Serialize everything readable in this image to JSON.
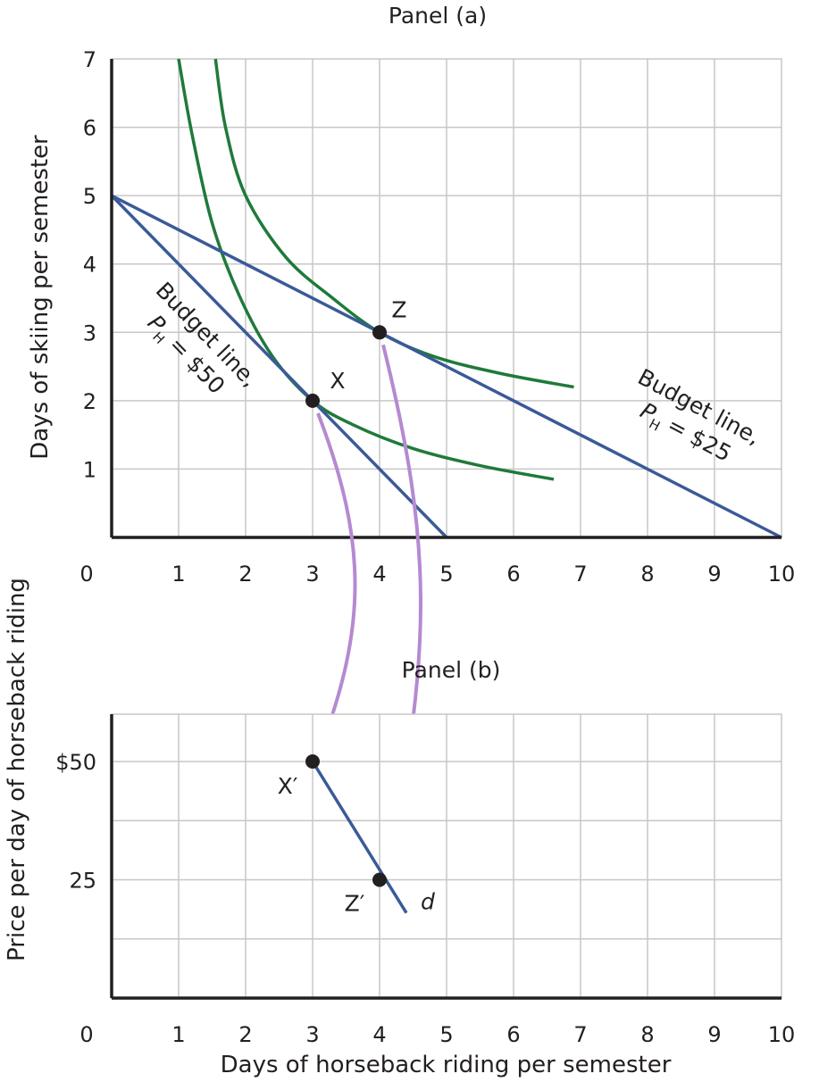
{
  "colors": {
    "budget_line": "#3a5a98",
    "indifference_curve": "#1f7a3a",
    "arrow": "#b58ad1",
    "demand_curve": "#3a5a98",
    "grid": "#c7c7c7",
    "axis": "#231f20",
    "point": "#231f20"
  },
  "chart_data": [
    {
      "type": "line",
      "title": "Panel (a)",
      "xlabel": "",
      "ylabel": "Days of skiing per semester",
      "xlim": [
        0,
        10
      ],
      "ylim": [
        0,
        7
      ],
      "x_ticks": [
        "0",
        "1",
        "2",
        "3",
        "4",
        "5",
        "6",
        "7",
        "8",
        "9",
        "10"
      ],
      "y_ticks": [
        "1",
        "2",
        "3",
        "4",
        "5",
        "6",
        "7"
      ],
      "grid": true,
      "series": [
        {
          "kind": "budget_line",
          "label": [
            "Budget line,",
            "P",
            "H",
            " = $50"
          ],
          "points": [
            [
              0,
              5
            ],
            [
              5,
              0
            ]
          ]
        },
        {
          "kind": "budget_line",
          "label": [
            "Budget line,",
            "P",
            "H",
            " = $25"
          ],
          "points": [
            [
              0,
              5
            ],
            [
              10,
              0
            ]
          ]
        },
        {
          "kind": "indifference_curve",
          "points": [
            [
              1.0,
              7.0
            ],
            [
              1.2,
              5.9
            ],
            [
              1.5,
              4.6
            ],
            [
              1.9,
              3.55
            ],
            [
              2.4,
              2.65
            ],
            [
              3.0,
              2.0
            ],
            [
              3.6,
              1.65
            ],
            [
              4.5,
              1.3
            ],
            [
              5.5,
              1.05
            ],
            [
              6.6,
              0.85
            ]
          ]
        },
        {
          "kind": "indifference_curve",
          "points": [
            [
              1.55,
              7.0
            ],
            [
              1.7,
              6.0
            ],
            [
              2.0,
              5.0
            ],
            [
              2.6,
              4.1
            ],
            [
              3.3,
              3.5
            ],
            [
              4.0,
              3.0
            ],
            [
              4.8,
              2.65
            ],
            [
              5.8,
              2.4
            ],
            [
              6.9,
              2.2
            ]
          ]
        }
      ],
      "points": [
        {
          "label": "X",
          "x": 3,
          "y": 2
        },
        {
          "label": "Z",
          "x": 4,
          "y": 3
        }
      ]
    },
    {
      "type": "line",
      "title": "Panel (b)",
      "xlabel": "Days of horseback riding per semester",
      "ylabel": "Price per day of horseback riding",
      "xlim": [
        0,
        10
      ],
      "ylim": [
        0,
        60
      ],
      "x_ticks": [
        "0",
        "1",
        "2",
        "3",
        "4",
        "5",
        "6",
        "7",
        "8",
        "9",
        "10"
      ],
      "y_tick_values": [
        25,
        50
      ],
      "y_ticks": [
        "25",
        "$50"
      ],
      "grid": true,
      "series": [
        {
          "kind": "demand_curve",
          "label": "d",
          "points": [
            [
              3,
              50
            ],
            [
              4.4,
              18
            ]
          ]
        }
      ],
      "points": [
        {
          "label": "X′",
          "x": 3,
          "y": 50
        },
        {
          "label": "Z′",
          "x": 4,
          "y": 25
        }
      ]
    }
  ],
  "connectors": [
    {
      "from": "X",
      "to": "X′"
    },
    {
      "from": "Z",
      "to": "Z′"
    }
  ]
}
